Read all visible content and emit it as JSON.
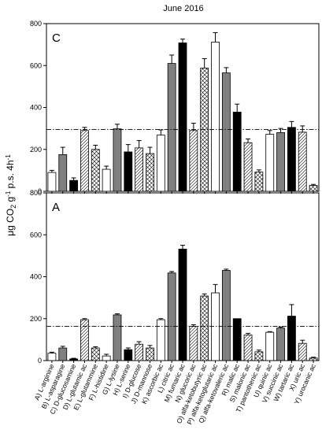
{
  "chart_data": {
    "type": "bar",
    "title": "June 2016",
    "ylabel_parts": {
      "mu": "μ",
      "g": "g CO",
      "two": "2",
      "gsp": " g",
      "m1": "-1",
      "ps": " p.s. 4h",
      "m1b": "-1"
    },
    "categories": [
      "A) L-arginine",
      "B) L-asparagine",
      "C) D-glucosamine",
      "D) L-glutamic ac",
      "E) L-glutammine",
      "F) L-histidine",
      "G) L-lysine",
      "H) L-serine",
      "I) D-glucose",
      "J) D-mannose",
      "K) ascorbic ac",
      "L) citric ac",
      "M) fumaric ac",
      "N) glucoric ac",
      "O) alfa-ketobutyric ac",
      "P) alfa-ketoglutaric ac",
      "Q) alfa-ketovaleric ac",
      "R) malic ac",
      "S) malonic ac",
      "T) pantothenic ac",
      "U) quinic ac",
      "V) succinic ac",
      "W) tartaric ac",
      "X) uric ac",
      "Y) urocanic ac"
    ],
    "fills": [
      "white",
      "gray",
      "black",
      "hatch",
      "cross",
      "white",
      "gray",
      "black",
      "hatch",
      "cross",
      "white",
      "gray",
      "black",
      "hatch",
      "cross",
      "white",
      "gray",
      "black",
      "hatch",
      "cross",
      "white",
      "gray",
      "black",
      "hatch",
      "cross"
    ],
    "colors": {
      "gray": "#808080",
      "black": "#000000",
      "white": "#ffffff",
      "refline": "#000000"
    },
    "panels": [
      {
        "label": "C",
        "ylim": [
          0,
          800
        ],
        "yticks": [
          0,
          200,
          400,
          600,
          800
        ],
        "reference_line": 295,
        "values": [
          90,
          175,
          52,
          290,
          200,
          105,
          298,
          188,
          207,
          180,
          268,
          610,
          708,
          290,
          588,
          712,
          565,
          378,
          232,
          92,
          272,
          280,
          305,
          282,
          28
        ],
        "errors": [
          10,
          35,
          12,
          15,
          20,
          15,
          22,
          35,
          35,
          30,
          25,
          40,
          18,
          35,
          45,
          45,
          25,
          38,
          18,
          10,
          18,
          20,
          28,
          30,
          5
        ]
      },
      {
        "label": "A",
        "ylim": [
          0,
          800
        ],
        "yticks": [
          0,
          200,
          400,
          600,
          800
        ],
        "reference_line": 163,
        "values": [
          35,
          60,
          8,
          195,
          60,
          22,
          218,
          52,
          78,
          60,
          195,
          418,
          532,
          163,
          308,
          323,
          430,
          200,
          122,
          42,
          135,
          155,
          212,
          82,
          12
        ],
        "errors": [
          5,
          8,
          3,
          5,
          6,
          8,
          5,
          8,
          12,
          12,
          5,
          7,
          18,
          8,
          10,
          40,
          6,
          0,
          8,
          8,
          3,
          5,
          55,
          15,
          4
        ]
      }
    ]
  }
}
